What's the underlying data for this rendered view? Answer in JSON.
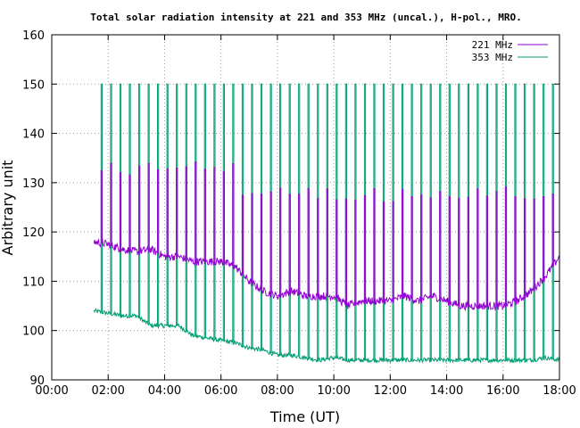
{
  "chart_data": {
    "type": "line",
    "title": "Total solar radiation intensity at 221 and 353 MHz (uncal.), H-pol., MRO.",
    "xlabel": "Time (UT)",
    "ylabel": "Arbitrary unit",
    "xlim_hours": [
      0,
      18
    ],
    "ylim": [
      90,
      160
    ],
    "x_tick_labels": [
      "00:00",
      "02:00",
      "04:00",
      "06:00",
      "08:00",
      "10:00",
      "12:00",
      "14:00",
      "16:00",
      "18:00"
    ],
    "y_tick_labels": [
      "90",
      "100",
      "110",
      "120",
      "130",
      "140",
      "150",
      "160"
    ],
    "grid": true,
    "legend_position": "top-right",
    "series": [
      {
        "name": "221 MHz",
        "color": "#9400d3",
        "x_hours": [
          1.5,
          2.0,
          2.5,
          3.0,
          3.5,
          4.0,
          4.5,
          5.0,
          5.5,
          6.0,
          6.5,
          7.0,
          7.5,
          8.0,
          8.5,
          9.0,
          9.5,
          10.0,
          10.5,
          11.0,
          11.5,
          12.0,
          12.5,
          13.0,
          13.5,
          14.0,
          14.5,
          15.0,
          15.5,
          16.0,
          16.5,
          17.0,
          17.5,
          18.0
        ],
        "values": [
          118,
          117.5,
          116.5,
          116,
          116.5,
          115,
          115,
          114,
          114,
          114,
          113,
          110,
          108,
          107,
          108,
          107,
          107,
          107,
          105,
          106,
          106,
          106,
          107,
          106,
          107,
          106,
          105,
          105,
          105,
          105,
          106,
          108,
          111,
          115
        ]
      },
      {
        "name": "353 MHz",
        "color": "#009e73",
        "x_hours": [
          1.5,
          2.0,
          2.5,
          3.0,
          3.5,
          4.0,
          4.5,
          5.0,
          5.5,
          6.0,
          6.5,
          7.0,
          7.5,
          8.0,
          8.5,
          9.0,
          9.5,
          10.0,
          10.5,
          11.0,
          11.5,
          12.0,
          12.5,
          13.0,
          13.5,
          14.0,
          14.5,
          15.0,
          15.5,
          16.0,
          16.5,
          17.0,
          17.5,
          18.0
        ],
        "values": [
          104,
          103.5,
          103,
          103,
          101,
          101,
          101,
          99,
          98.5,
          98,
          97.5,
          96.5,
          96,
          95,
          95,
          94.5,
          94,
          94.5,
          94,
          94,
          94,
          94,
          94,
          94,
          94,
          94,
          94,
          94,
          94,
          94,
          94,
          94,
          94.5,
          94
        ]
      }
    ],
    "calibration_spikes": {
      "interval_minutes": 20,
      "start_hours": 1.75,
      "end_hours": 17.95,
      "spike_level_353": 150,
      "spike_level_221_early": 133,
      "spike_level_221_late": 127
    }
  }
}
